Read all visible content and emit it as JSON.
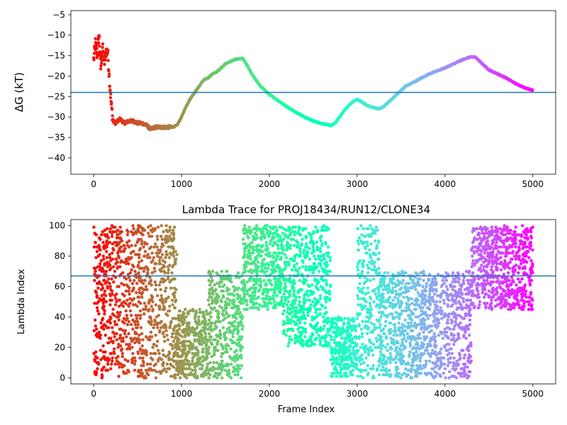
{
  "chart_data": [
    {
      "type": "scatter",
      "title": "",
      "xlabel": "",
      "ylabel": "ΔG (kT)",
      "xlim": [
        -260,
        5260
      ],
      "ylim": [
        -44,
        -4
      ],
      "xticks": [
        0,
        1000,
        2000,
        3000,
        4000,
        5000
      ],
      "xtick_labels": [
        "0",
        "1000",
        "2000",
        "3000",
        "4000",
        "5000"
      ],
      "yticks": [
        -40,
        -35,
        -30,
        -25,
        -20,
        -15,
        -10,
        -5
      ],
      "ytick_labels": [
        "−40",
        "−35",
        "−30",
        "−25",
        "−20",
        "−15",
        "−10",
        "−5"
      ],
      "colormap": "rainbow (high at start → low at end)",
      "hline": {
        "y": -24,
        "color": "#1f77b4"
      },
      "x": [
        0,
        20,
        40,
        60,
        80,
        100,
        120,
        140,
        160,
        180,
        200,
        220,
        250,
        300,
        350,
        400,
        450,
        500,
        550,
        600,
        650,
        700,
        750,
        800,
        850,
        900,
        950,
        1000,
        1050,
        1100,
        1150,
        1200,
        1250,
        1300,
        1350,
        1400,
        1450,
        1500,
        1550,
        1600,
        1650,
        1700,
        1720,
        1750,
        1800,
        1850,
        1900,
        1950,
        2000,
        2100,
        2200,
        2300,
        2400,
        2500,
        2600,
        2700,
        2750,
        2800,
        2850,
        2900,
        2950,
        3000,
        3050,
        3100,
        3150,
        3200,
        3250,
        3300,
        3350,
        3400,
        3450,
        3500,
        3550,
        3600,
        3700,
        3800,
        3900,
        4000,
        4100,
        4200,
        4250,
        4300,
        4350,
        4400,
        4450,
        4500,
        4600,
        4700,
        4800,
        4900,
        5000
      ],
      "y": [
        -16,
        -12,
        -15,
        -10,
        -18,
        -13,
        -17,
        -14,
        -14,
        -21,
        -27,
        -31,
        -31.5,
        -30.5,
        -31.5,
        -31,
        -31,
        -31.5,
        -31.5,
        -32,
        -33,
        -32.5,
        -32.5,
        -32.5,
        -32.5,
        -32.5,
        -32,
        -30,
        -27.5,
        -25.5,
        -24,
        -22.5,
        -21,
        -20.5,
        -19.5,
        -19,
        -18,
        -17,
        -16.5,
        -16,
        -15.8,
        -15.7,
        -16.5,
        -17.5,
        -19.5,
        -21,
        -22.5,
        -23.5,
        -24.5,
        -26,
        -27.5,
        -28.8,
        -30,
        -31,
        -31.6,
        -32.1,
        -31.5,
        -30,
        -28.5,
        -27.3,
        -26.3,
        -25.7,
        -26.3,
        -27,
        -27.5,
        -27.8,
        -28,
        -27.5,
        -26.5,
        -25.5,
        -24.5,
        -23.5,
        -22.5,
        -22,
        -20.8,
        -19.7,
        -18.8,
        -18,
        -17,
        -16,
        -15.6,
        -15.3,
        -15.4,
        -16.5,
        -17.5,
        -18.5,
        -19.5,
        -20.5,
        -21.8,
        -22.8,
        -23.5
      ]
    },
    {
      "type": "scatter",
      "title": "Lambda Trace for PROJ18434/RUN12/CLONE34",
      "xlabel": "Frame Index",
      "ylabel": "Lambda Index",
      "xlim": [
        -260,
        5260
      ],
      "ylim": [
        -4,
        104
      ],
      "xticks": [
        0,
        1000,
        2000,
        3000,
        4000,
        5000
      ],
      "xtick_labels": [
        "0",
        "1000",
        "2000",
        "3000",
        "4000",
        "5000"
      ],
      "yticks": [
        0,
        20,
        40,
        60,
        80,
        100
      ],
      "ytick_labels": [
        "0",
        "20",
        "40",
        "60",
        "80",
        "100"
      ],
      "colormap": "rainbow (high at start → low at end)",
      "hline": {
        "y": 67,
        "color": "#1f77b4"
      },
      "regions": [
        {
          "x_range": [
            0,
            40
          ],
          "lambda_range": [
            0,
            100
          ]
        },
        {
          "x_range": [
            40,
            950
          ],
          "lambda_range": [
            0,
            100
          ]
        },
        {
          "x_range": [
            950,
            1300
          ],
          "lambda_range": [
            0,
            45
          ]
        },
        {
          "x_range": [
            1300,
            1700
          ],
          "lambda_range": [
            0,
            70
          ]
        },
        {
          "x_range": [
            1700,
            2150
          ],
          "lambda_range": [
            45,
            100
          ]
        },
        {
          "x_range": [
            2150,
            2700
          ],
          "lambda_range": [
            20,
            100
          ]
        },
        {
          "x_range": [
            2700,
            3000
          ],
          "lambda_range": [
            0,
            40
          ]
        },
        {
          "x_range": [
            3000,
            3250
          ],
          "lambda_range": [
            0,
            100
          ]
        },
        {
          "x_range": [
            3250,
            4300
          ],
          "lambda_range": [
            0,
            70
          ]
        },
        {
          "x_range": [
            4300,
            5000
          ],
          "lambda_range": [
            45,
            100
          ]
        }
      ]
    }
  ]
}
